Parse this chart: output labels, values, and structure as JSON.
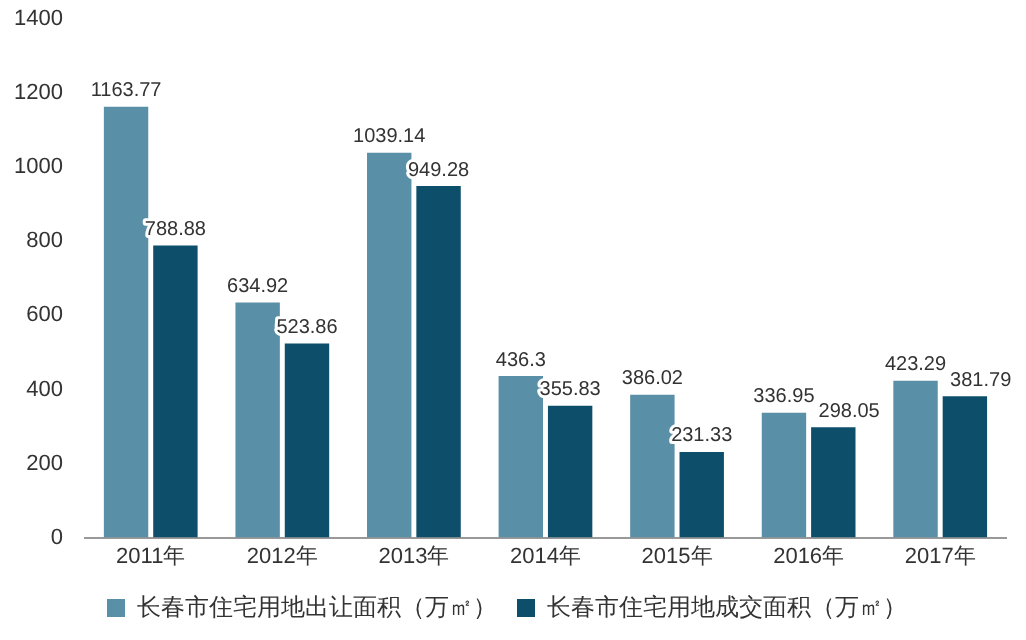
{
  "chart_data": {
    "type": "bar",
    "categories": [
      "2011年",
      "2012年",
      "2013年",
      "2014年",
      "2015年",
      "2016年",
      "2017年"
    ],
    "series": [
      {
        "name": "长春市住宅用地出让面积（万㎡）",
        "color": "#5a8fa8",
        "values": [
          1163.77,
          634.92,
          1039.14,
          436.3,
          386.02,
          336.95,
          423.29
        ]
      },
      {
        "name": "长春市住宅用地成交面积（万㎡）",
        "color": "#0d4f6b",
        "values": [
          788.88,
          523.86,
          949.28,
          355.83,
          231.33,
          298.05,
          381.79
        ]
      }
    ],
    "ylim": [
      0,
      1400
    ],
    "yticks": [
      0,
      200,
      400,
      600,
      800,
      1000,
      1200,
      1400
    ],
    "grid": false,
    "legend": "bottom",
    "data_labels": true
  }
}
